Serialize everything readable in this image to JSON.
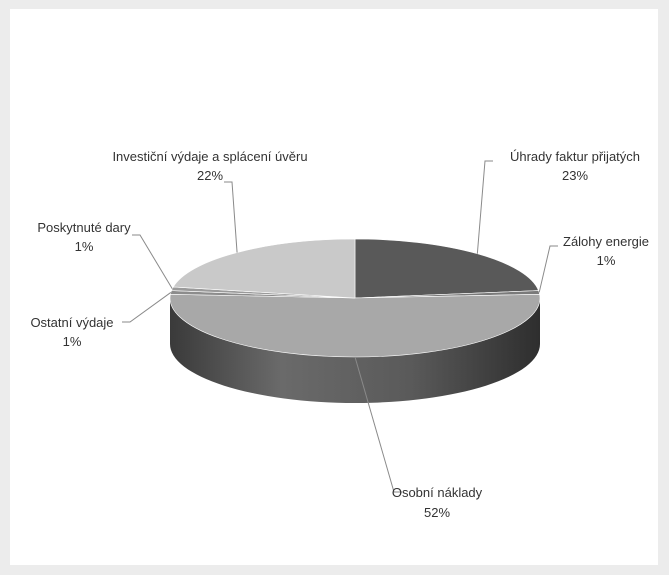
{
  "chart_data": {
    "type": "pie",
    "title": "",
    "style": "3d",
    "grid": false,
    "legend": "none",
    "slices": [
      {
        "label": "Úhrady faktur přijatých",
        "value": 23,
        "value_label": "23%",
        "color": "#595959"
      },
      {
        "label": "Zálohy energie",
        "value": 1,
        "value_label": "1%",
        "color": "#7a7a7a"
      },
      {
        "label": "Osobní náklady",
        "value": 52,
        "value_label": "52%",
        "color": "#a8a8a8"
      },
      {
        "label": "Ostatní výdaje",
        "value": 1,
        "value_label": "1%",
        "color": "#8c8c8c"
      },
      {
        "label": "Poskytnuté dary",
        "value": 1,
        "value_label": "1%",
        "color": "#9a9a9a"
      },
      {
        "label": "Investiční výdaje a splácení úvěru",
        "value": 22,
        "value_label": "22%",
        "color": "#c9c9c9"
      }
    ]
  }
}
